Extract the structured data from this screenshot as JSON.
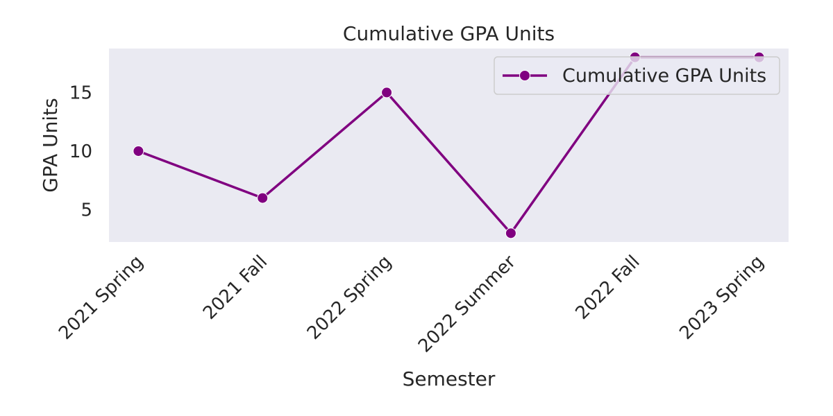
{
  "chart_data": {
    "type": "line",
    "title": "Cumulative GPA Units",
    "xlabel": "Semester",
    "ylabel": "GPA Units",
    "categories": [
      "2021 Spring",
      "2021 Fall",
      "2022 Spring",
      "2022 Summer",
      "2022 Fall",
      "2023 Spring"
    ],
    "series": [
      {
        "name": "Cumulative GPA Units",
        "values": [
          10,
          6,
          15,
          3,
          18,
          18
        ],
        "color": "#800080",
        "marker": "circle"
      }
    ],
    "ylim": [
      2.25,
      18.75
    ],
    "yticks": [
      5,
      10,
      15
    ],
    "grid": false,
    "legend_position": "top-right",
    "plot_background": "#eaeaf2"
  }
}
